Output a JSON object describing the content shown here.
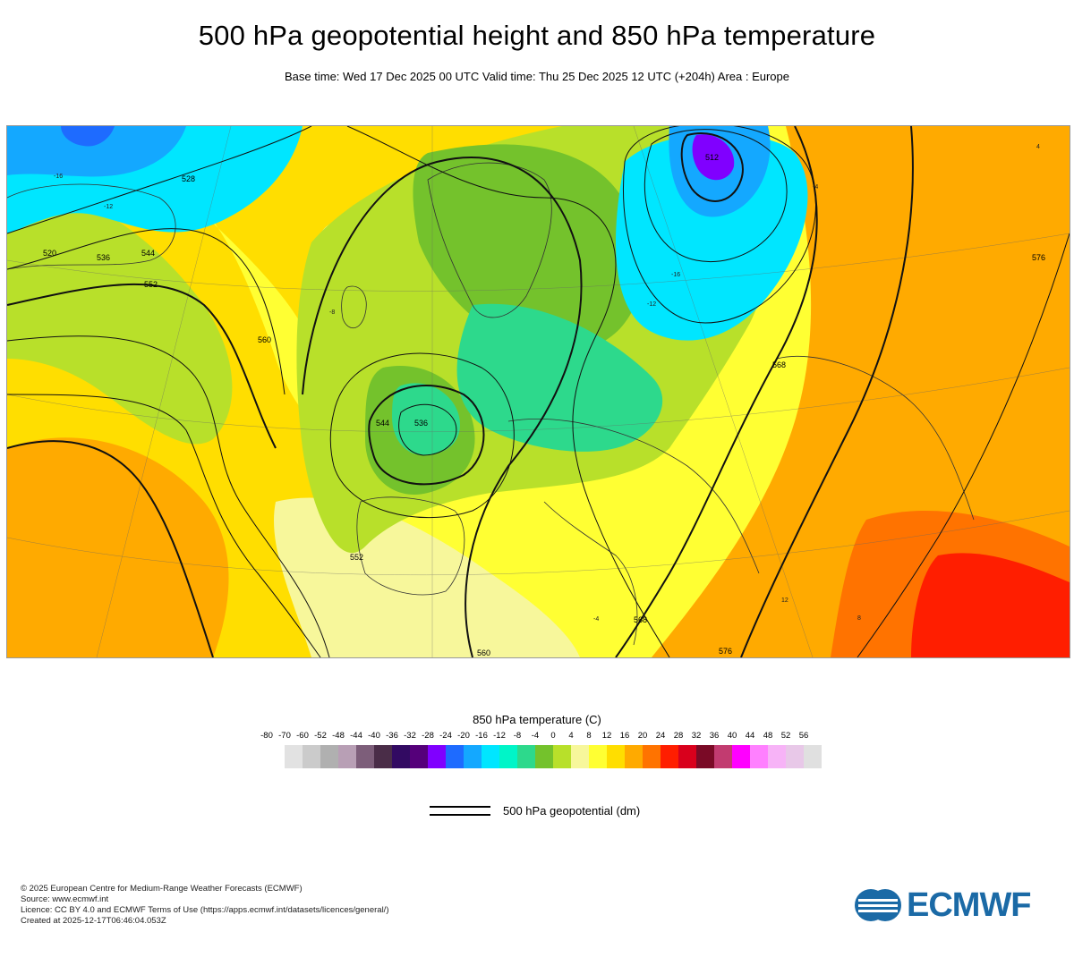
{
  "header": {
    "title": "500 hPa geopotential height and 850 hPa temperature",
    "subtitle": "Base time: Wed 17 Dec 2025 00 UTC Valid time: Thu 25 Dec 2025 12 UTC (+204h) Area : Europe"
  },
  "map": {
    "area": "Europe",
    "contour_labels_dm": [
      "528",
      "536",
      "544",
      "552",
      "560",
      "568",
      "576",
      "520",
      "544",
      "552",
      "560",
      "568",
      "576"
    ],
    "temperature_labels_c": [
      "-16",
      "-12",
      "-8",
      "-4",
      "-16",
      "-12",
      "-4",
      "4",
      "8",
      "12"
    ],
    "warm_region_color": "#e60012",
    "cold_region_color": "#0099ff",
    "low_centres": [
      {
        "name": "arctic-low",
        "value": "512"
      },
      {
        "name": "iberian-low",
        "value": "536"
      }
    ]
  },
  "legend": {
    "title": "850 hPa temperature (C)",
    "ticks": [
      "-80",
      "-70",
      "-60",
      "-52",
      "-48",
      "-44",
      "-40",
      "-36",
      "-32",
      "-28",
      "-24",
      "-20",
      "-16",
      "-12",
      "-8",
      "-4",
      "0",
      "4",
      "8",
      "12",
      "16",
      "20",
      "24",
      "28",
      "32",
      "36",
      "40",
      "44",
      "48",
      "52",
      "56"
    ],
    "colors": [
      "#e2e2e2",
      "#cbcbcb",
      "#b0b0b0",
      "#b89fb5",
      "#7d5e7a",
      "#4a2d48",
      "#320a62",
      "#55007a",
      "#8000ff",
      "#1e6bff",
      "#14a8ff",
      "#00e6ff",
      "#00f5c8",
      "#2dd98c",
      "#74c22c",
      "#b8e02a",
      "#f7f79b",
      "#ffff33",
      "#ffde00",
      "#ffaa00",
      "#ff7300",
      "#ff1e00",
      "#d9001c",
      "#7a0a26",
      "#c23b70",
      "#ff00ff",
      "#ff80ff",
      "#f7b3f7",
      "#e8c8e8",
      "#e0e0e0"
    ],
    "contour_label": "500 hPa geopotential (dm)"
  },
  "footer": {
    "line1": "© 2025 European Centre for Medium-Range Weather Forecasts (ECMWF)",
    "line2": "Source: www.ecmwf.int",
    "line3": "Licence: CC BY 4.0 and ECMWF Terms of Use (https://apps.ecmwf.int/datasets/licences/general/)",
    "line4": "Created at 2025-12-17T06:46:04.053Z"
  },
  "logo": {
    "text": "ECMWF",
    "color": "#1b6aa6"
  }
}
